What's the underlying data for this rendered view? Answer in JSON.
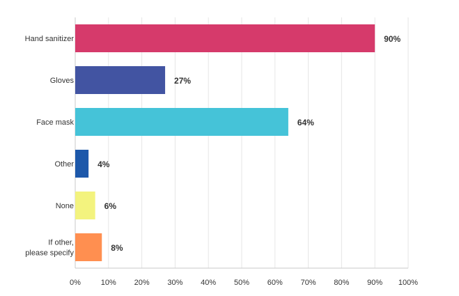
{
  "chart_data": {
    "type": "bar",
    "orientation": "horizontal",
    "categories": [
      [
        "Hand sanitizer"
      ],
      [
        "Gloves"
      ],
      [
        "Face mask"
      ],
      [
        "Other"
      ],
      [
        "None"
      ],
      [
        "If other,",
        "please specify"
      ]
    ],
    "values": [
      90,
      27,
      64,
      4,
      6,
      8
    ],
    "value_labels": [
      "90%",
      "27%",
      "64%",
      "4%",
      "6%",
      "8%"
    ],
    "colors": [
      "#D63A6B",
      "#4254A2",
      "#45C3D8",
      "#1D58AA",
      "#F3F37E",
      "#FF8F50"
    ],
    "xlim": [
      0,
      100
    ],
    "x_ticks": [
      0,
      10,
      20,
      30,
      40,
      50,
      60,
      70,
      80,
      90,
      100
    ],
    "x_tick_labels": [
      "0%",
      "10%",
      "20%",
      "30%",
      "40%",
      "50%",
      "60%",
      "70%",
      "80%",
      "90%",
      "100%"
    ],
    "grid": true,
    "title": "",
    "xlabel": "",
    "ylabel": ""
  }
}
